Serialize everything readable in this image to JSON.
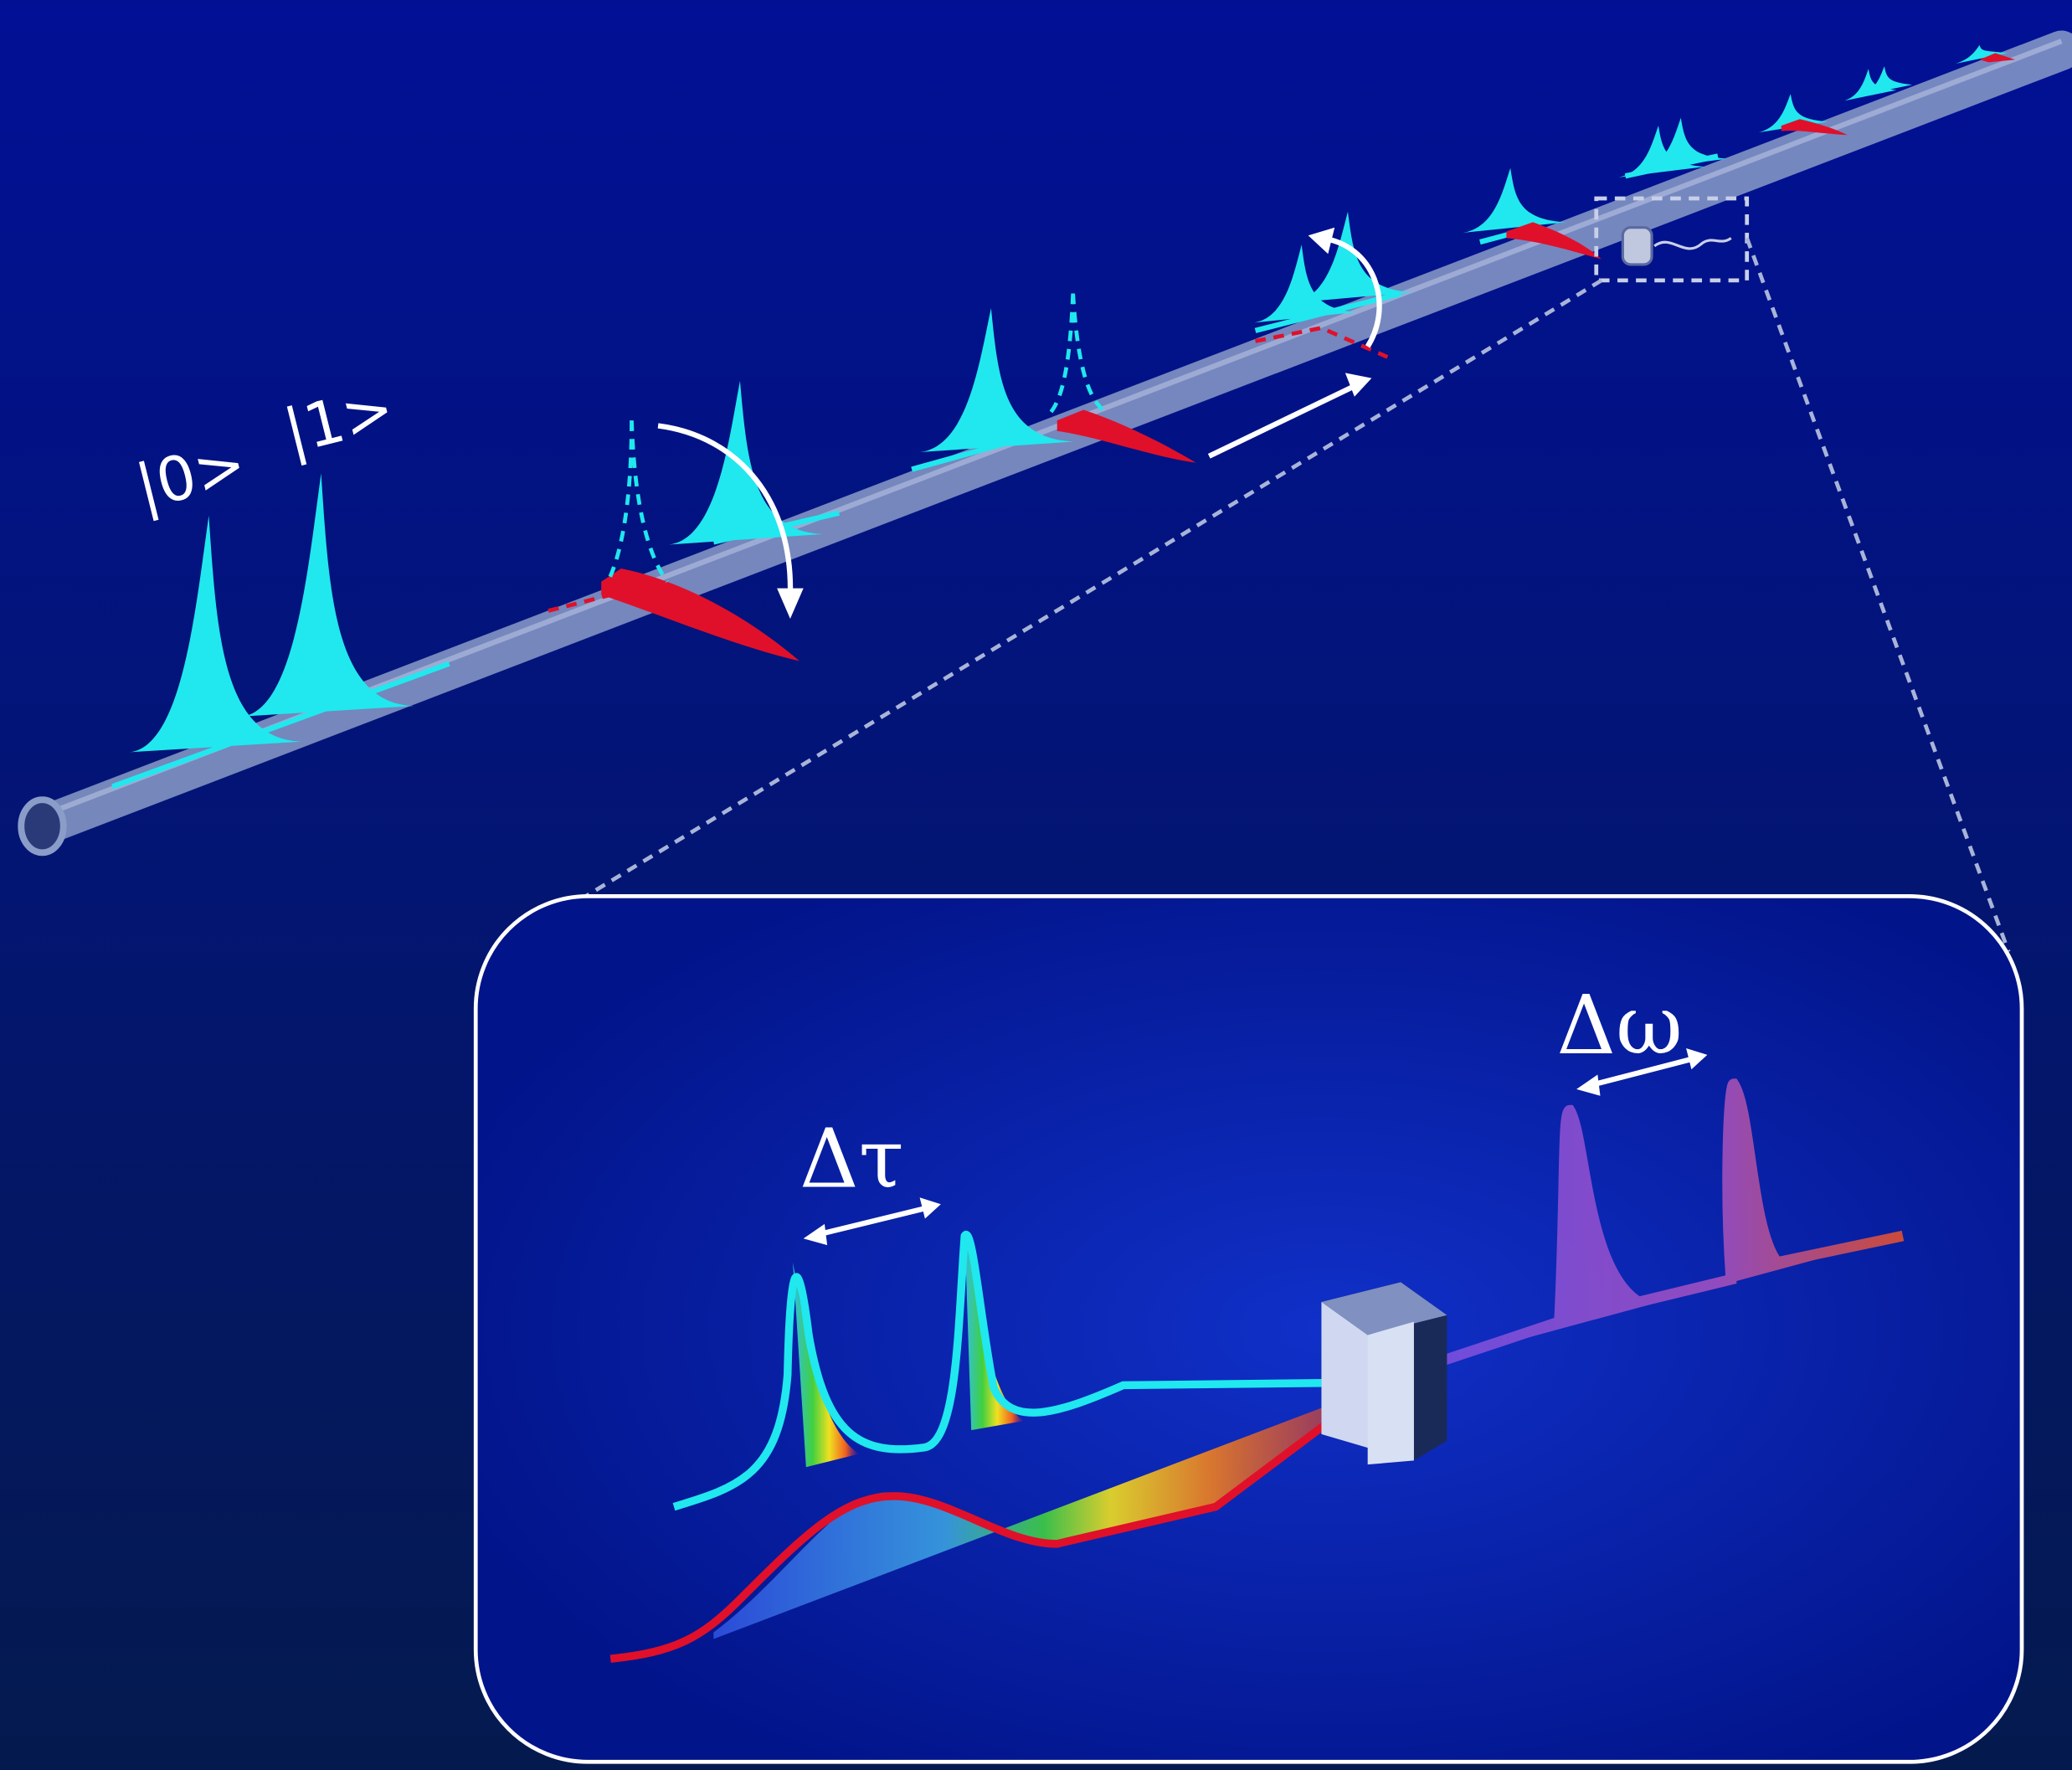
{
  "annotations": {
    "ket0": "|0>",
    "ket1": "|1>",
    "delta_tau": "Δτ",
    "delta_omega": "Δω"
  }
}
